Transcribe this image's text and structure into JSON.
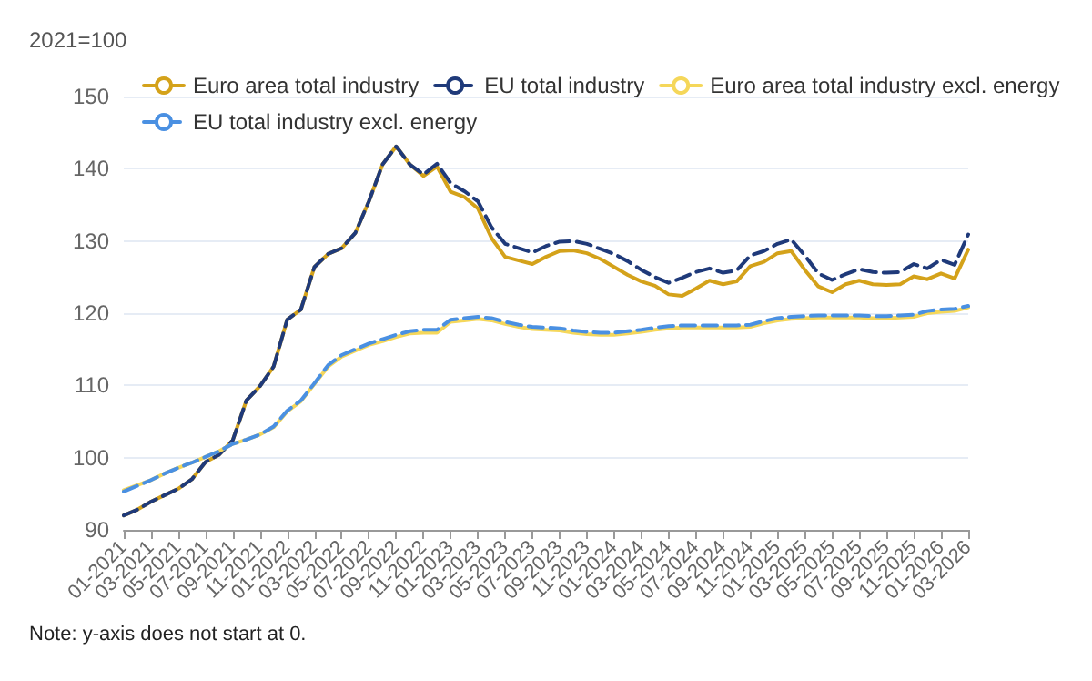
{
  "chart_data": {
    "type": "line",
    "ylabel": "2021=100",
    "categories": [
      "01-2021",
      null,
      "03-2021",
      null,
      "05-2021",
      null,
      "07-2021",
      null,
      "09-2021",
      null,
      "11-2021",
      null,
      "01-2022",
      null,
      "03-2022",
      null,
      "05-2022",
      null,
      "07-2022",
      null,
      "09-2022",
      null,
      "11-2022",
      null,
      "01-2023",
      null,
      "03-2023",
      null,
      "05-2023",
      null,
      "07-2023",
      null,
      "09-2023",
      null,
      "11-2023",
      null,
      "01-2024",
      null,
      "03-2024",
      null,
      "05-2024",
      null,
      "07-2024",
      null,
      "09-2024",
      null,
      "11-2024",
      null,
      "01-2025",
      null,
      "03-2025",
      null,
      "05-2025",
      null,
      "07-2025",
      null,
      "09-2025",
      null,
      "11-2025",
      null,
      "01-2026",
      null,
      "03-2026"
    ],
    "series": [
      {
        "name": "Euro area total industry",
        "color": "#d4a21a",
        "line_style": "solid",
        "values": [
          92.0,
          92.8,
          93.9,
          94.8,
          95.7,
          97.0,
          99.4,
          100.4,
          102.4,
          107.9,
          109.9,
          112.6,
          119.1,
          120.5,
          126.4,
          128.2,
          129.0,
          131.1,
          135.5,
          140.6,
          143.1,
          140.6,
          139.0,
          140.3,
          136.8,
          136.1,
          134.5,
          130.4,
          127.8,
          127.3,
          126.8,
          127.8,
          128.6,
          128.7,
          128.3,
          127.5,
          126.4,
          125.3,
          124.4,
          123.8,
          122.6,
          122.4,
          123.4,
          124.5,
          124.0,
          124.4,
          126.5,
          127.1,
          128.3,
          128.6,
          126.0,
          123.7,
          122.9,
          124.0,
          124.5,
          124.0,
          123.9,
          124.0,
          125.1,
          124.7,
          125.5,
          124.8,
          128.8
        ]
      },
      {
        "name": "EU total industry",
        "color": "#1f3a7a",
        "line_style": "dashed",
        "values": [
          92.0,
          92.8,
          93.9,
          94.8,
          95.7,
          97.0,
          99.4,
          100.4,
          102.4,
          107.9,
          109.9,
          112.6,
          119.1,
          120.5,
          126.4,
          128.2,
          129.0,
          131.1,
          135.5,
          140.6,
          143.1,
          140.6,
          139.2,
          140.7,
          138.0,
          136.9,
          135.5,
          131.9,
          129.6,
          129.0,
          128.4,
          129.3,
          129.9,
          130.0,
          129.6,
          128.9,
          128.2,
          127.2,
          126.0,
          125.0,
          124.2,
          124.9,
          125.7,
          126.2,
          125.6,
          125.9,
          128.0,
          128.6,
          129.6,
          130.2,
          128.0,
          125.5,
          124.6,
          125.4,
          126.1,
          125.7,
          125.6,
          125.7,
          126.8,
          126.2,
          127.4,
          126.7,
          130.9
        ]
      },
      {
        "name": "Euro area total industry excl. energy",
        "color": "#f5d75a",
        "line_style": "solid",
        "values": [
          95.5,
          96.2,
          96.9,
          97.8,
          98.6,
          99.3,
          100.1,
          100.9,
          101.9,
          102.5,
          103.2,
          104.2,
          106.4,
          107.8,
          110.2,
          112.6,
          114.0,
          114.8,
          115.6,
          116.1,
          116.7,
          117.2,
          117.3,
          117.3,
          118.8,
          119.0,
          119.2,
          119.0,
          118.5,
          118.1,
          117.8,
          117.7,
          117.6,
          117.3,
          117.1,
          117.0,
          117.0,
          117.2,
          117.4,
          117.7,
          117.9,
          118.0,
          118.0,
          118.0,
          118.0,
          118.0,
          118.1,
          118.6,
          119.0,
          119.2,
          119.3,
          119.4,
          119.4,
          119.4,
          119.4,
          119.3,
          119.3,
          119.4,
          119.5,
          120.0,
          120.2,
          120.3,
          120.8
        ]
      },
      {
        "name": "EU total industry excl. energy",
        "color": "#4a90e2",
        "line_style": "dashed",
        "values": [
          95.3,
          96.1,
          96.9,
          97.8,
          98.6,
          99.3,
          100.1,
          100.9,
          101.9,
          102.5,
          103.2,
          104.3,
          106.5,
          107.9,
          110.3,
          112.8,
          114.2,
          115.0,
          115.8,
          116.4,
          117.0,
          117.5,
          117.7,
          117.7,
          119.1,
          119.3,
          119.5,
          119.3,
          118.8,
          118.4,
          118.1,
          118.0,
          117.9,
          117.6,
          117.4,
          117.3,
          117.3,
          117.5,
          117.7,
          118.0,
          118.2,
          118.3,
          118.3,
          118.3,
          118.3,
          118.3,
          118.4,
          118.9,
          119.3,
          119.5,
          119.6,
          119.7,
          119.7,
          119.7,
          119.7,
          119.6,
          119.6,
          119.7,
          119.8,
          120.3,
          120.5,
          120.6,
          121.0
        ]
      }
    ],
    "ylim": [
      90,
      150
    ],
    "yticks": [
      90,
      100,
      110,
      120,
      130,
      140,
      150
    ],
    "grid": "y",
    "legend": "top",
    "marker": "none",
    "annotations": [
      "Note: y-axis does not start at 0."
    ]
  }
}
